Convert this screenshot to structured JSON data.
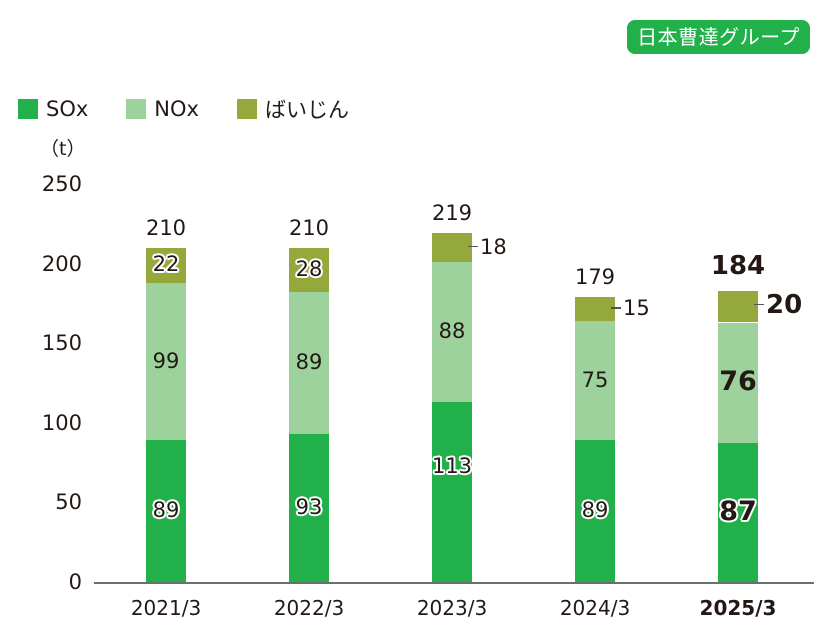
{
  "badge": {
    "label": "日本曹達グループ"
  },
  "legend": [
    {
      "label": "SOx",
      "color": "#22b04b"
    },
    {
      "label": "NOx",
      "color": "#9dd29c"
    },
    {
      "label": "ばいじん",
      "color": "#95a83b"
    }
  ],
  "unit": "（t）",
  "chart_data": {
    "type": "bar",
    "stacked": true,
    "title": "",
    "xlabel": "",
    "ylabel": "（t）",
    "ylim": [
      0,
      250
    ],
    "yticks": [
      0,
      50,
      100,
      150,
      200,
      250
    ],
    "categories": [
      "2021/3",
      "2022/3",
      "2023/3",
      "2024/3",
      "2025/3"
    ],
    "series": [
      {
        "name": "SOx",
        "color": "#22b04b",
        "values": [
          89,
          93,
          113,
          89,
          87
        ]
      },
      {
        "name": "NOx",
        "color": "#9dd29c",
        "values": [
          99,
          89,
          88,
          75,
          76
        ]
      },
      {
        "name": "ばいじん",
        "color": "#95a83b",
        "values": [
          22,
          28,
          18,
          15,
          20
        ]
      }
    ],
    "totals": [
      210,
      210,
      219,
      179,
      184
    ],
    "highlight_category": "2025/3",
    "legend_position": "top-left",
    "grid": false
  }
}
